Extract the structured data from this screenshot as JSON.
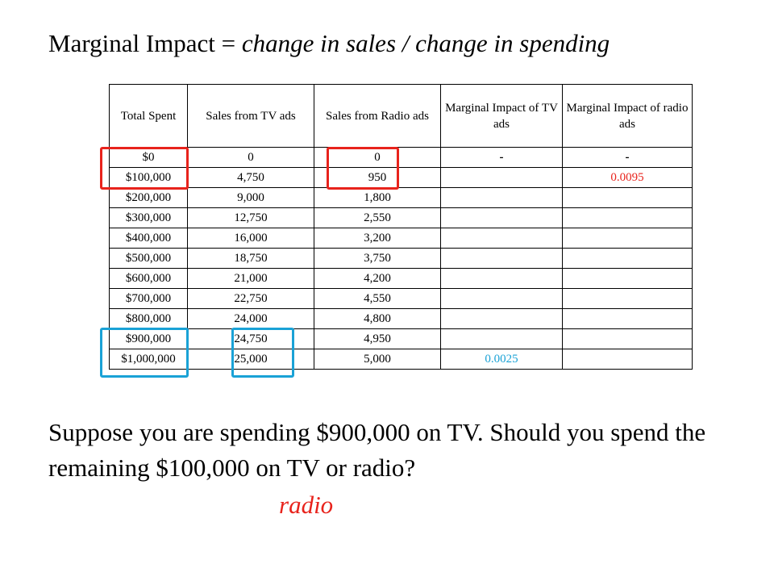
{
  "title": {
    "lhs": "Marginal Impact",
    "eq": "=",
    "rhs": "change in sales  / change in spending"
  },
  "table": {
    "headers": [
      "Total Spent",
      "Sales from TV ads",
      "Sales from Radio ads",
      "Marginal Impact of TV ads",
      "Marginal Impact of radio ads"
    ],
    "rows": [
      [
        "$0",
        "0",
        "0",
        "-",
        "-"
      ],
      [
        "$100,000",
        "4,750",
        "950",
        "",
        "0.0095"
      ],
      [
        "$200,000",
        "9,000",
        "1,800",
        "",
        ""
      ],
      [
        "$300,000",
        "12,750",
        "2,550",
        "",
        ""
      ],
      [
        "$400,000",
        "16,000",
        "3,200",
        "",
        ""
      ],
      [
        "$500,000",
        "18,750",
        "3,750",
        "",
        ""
      ],
      [
        "$600,000",
        "21,000",
        "4,200",
        "",
        ""
      ],
      [
        "$700,000",
        "22,750",
        "4,550",
        "",
        ""
      ],
      [
        "$800,000",
        "24,000",
        "4,800",
        "",
        ""
      ],
      [
        "$900,000",
        "24,750",
        "4,950",
        "",
        ""
      ],
      [
        "$1,000,000",
        "25,000",
        "5,000",
        "0.0025",
        ""
      ]
    ]
  },
  "highlight_colors": {
    "red": "#e8231c",
    "blue": "#1aa2d6"
  },
  "question": "Suppose you are spending $900,000 on TV. Should you spend the remaining $100,000 on TV or radio?",
  "answer": "radio"
}
